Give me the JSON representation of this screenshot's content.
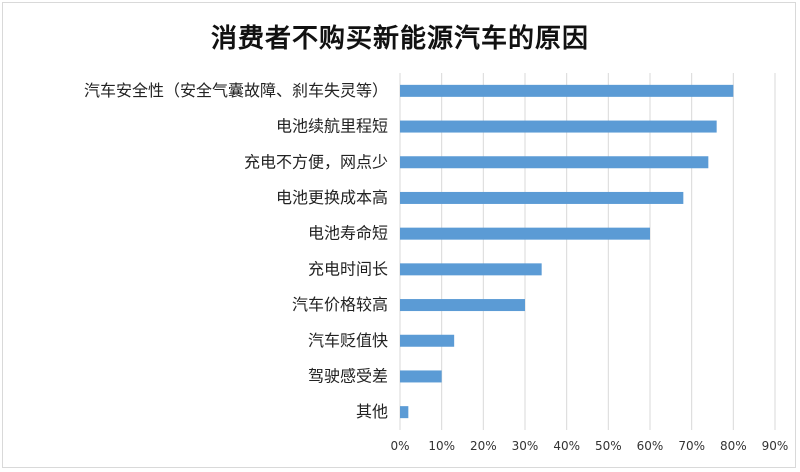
{
  "chart_data": {
    "type": "bar",
    "orientation": "horizontal",
    "title": "消费者不购买新能源汽车的原因",
    "categories": [
      "汽车安全性（安全气囊故障、刹车失灵等）",
      "电池续航里程短",
      "充电不方便，网点少",
      "电池更换成本高",
      "电池寿命短",
      "充电时间长",
      "汽车价格较高",
      "汽车贬值快",
      "驾驶感受差",
      "其他"
    ],
    "values": [
      80,
      76,
      74,
      68,
      60,
      34,
      30,
      13,
      10,
      2
    ],
    "unit": "%",
    "xlim": [
      0,
      90
    ],
    "xticks": [
      "0%",
      "10%",
      "20%",
      "30%",
      "40%",
      "50%",
      "60%",
      "70%",
      "80%",
      "90%"
    ],
    "grid": true,
    "legend": false,
    "bar_color": "#5B9BD5",
    "grid_color": "#D9D9D9"
  }
}
